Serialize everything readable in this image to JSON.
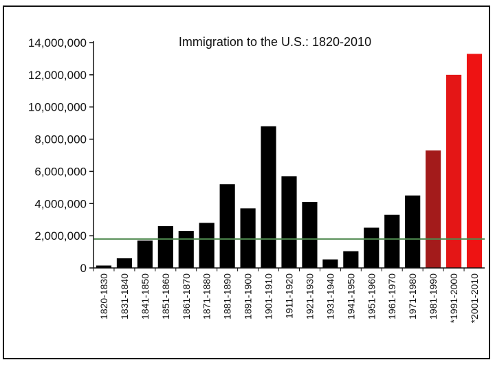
{
  "chart_data": {
    "type": "bar",
    "title": "Immigration to the U.S.: 1820-2010",
    "xlabel": "",
    "ylabel": "",
    "ylim": [
      0,
      14000000
    ],
    "yticks": [
      0,
      2000000,
      4000000,
      6000000,
      8000000,
      10000000,
      12000000,
      14000000
    ],
    "ytick_labels": [
      "0",
      "2,000,000",
      "4,000,000",
      "6,000,000",
      "8,000,000",
      "10,000,000",
      "12,000,000",
      "14,000,000"
    ],
    "categories": [
      "1820-1830",
      "1831-1840",
      "1841-1850",
      "1851-1860",
      "1861-1870",
      "1871-1880",
      "1881-1890",
      "1891-1900",
      "1901-1910",
      "1911-1920",
      "1921-1930",
      "1931-1940",
      "1941-1950",
      "1951-1960",
      "1961-1970",
      "1971-1980",
      "1981-1990",
      "*1991-2000",
      "*2001-2010"
    ],
    "values": [
      150000,
      600000,
      1700000,
      2600000,
      2300000,
      2800000,
      5200000,
      3700000,
      8800000,
      5700000,
      4100000,
      530000,
      1040000,
      2500000,
      3300000,
      4500000,
      7300000,
      12000000,
      13300000
    ],
    "bar_colors": [
      "#000000",
      "#000000",
      "#000000",
      "#000000",
      "#000000",
      "#000000",
      "#000000",
      "#000000",
      "#000000",
      "#000000",
      "#000000",
      "#000000",
      "#000000",
      "#000000",
      "#000000",
      "#000000",
      "#a31b1b",
      "#e41616",
      "#ee1313"
    ],
    "reference_line": {
      "value": 1800000,
      "color": "#4f8a4f"
    },
    "grid": false,
    "legend": "none"
  }
}
